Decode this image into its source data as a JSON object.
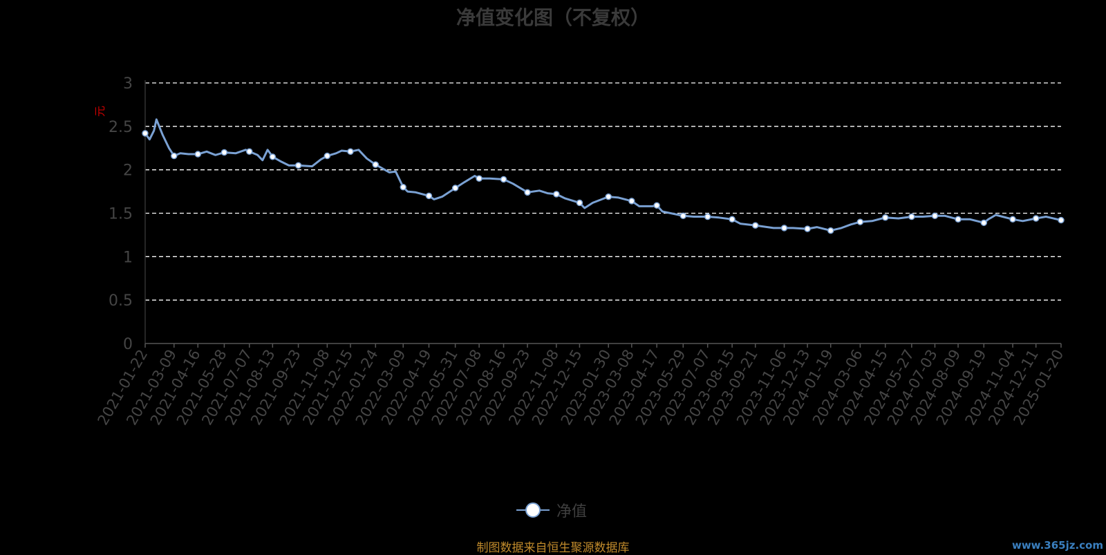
{
  "title": "净值变化图（不复权）",
  "unit_label": "元",
  "legend_label": "净值",
  "source_note": "制图数据来自恒生聚源数据库",
  "watermark": "www.365jz.com",
  "colors": {
    "line": "#7aa1d3",
    "marker_fill": "#ffffff",
    "grid": "#ffffff",
    "axis_text": "#454545",
    "unit": "#cc0000"
  },
  "chart_data": {
    "type": "line",
    "title": "净值变化图（不复权）",
    "ylabel": "元",
    "ylim": [
      0,
      3
    ],
    "yticks": [
      0,
      0.5,
      1,
      1.5,
      2,
      2.5,
      3
    ],
    "grid": true,
    "legend_position": "bottom",
    "x_ticks": [
      "2021-01-22",
      "2021-03-09",
      "2021-04-16",
      "2021-05-28",
      "2021-07-07",
      "2021-08-13",
      "2021-09-23",
      "2021-11-08",
      "2021-12-15",
      "2022-01-24",
      "2022-03-09",
      "2022-04-19",
      "2022-05-31",
      "2022-07-08",
      "2022-08-16",
      "2022-09-23",
      "2022-11-08",
      "2022-12-15",
      "2023-01-30",
      "2023-03-08",
      "2023-04-17",
      "2023-05-29",
      "2023-07-07",
      "2023-08-15",
      "2023-09-21",
      "2023-11-06",
      "2023-12-13",
      "2024-01-19",
      "2024-03-06",
      "2024-04-15",
      "2024-05-27",
      "2024-07-03",
      "2024-08-09",
      "2024-09-19",
      "2024-11-04",
      "2024-12-11",
      "2025-01-20"
    ],
    "series": [
      {
        "name": "净值",
        "points": [
          [
            "2021-01-22",
            2.42
          ],
          [
            "2021-01-29",
            2.35
          ],
          [
            "2021-02-05",
            2.45
          ],
          [
            "2021-02-09",
            2.58
          ],
          [
            "2021-02-19",
            2.4
          ],
          [
            "2021-03-01",
            2.25
          ],
          [
            "2021-03-09",
            2.16
          ],
          [
            "2021-03-19",
            2.19
          ],
          [
            "2021-04-01",
            2.18
          ],
          [
            "2021-04-16",
            2.18
          ],
          [
            "2021-04-30",
            2.21
          ],
          [
            "2021-05-14",
            2.17
          ],
          [
            "2021-05-28",
            2.2
          ],
          [
            "2021-06-15",
            2.19
          ],
          [
            "2021-07-01",
            2.23
          ],
          [
            "2021-07-07",
            2.21
          ],
          [
            "2021-07-20",
            2.17
          ],
          [
            "2021-07-28",
            2.11
          ],
          [
            "2021-08-05",
            2.23
          ],
          [
            "2021-08-13",
            2.15
          ],
          [
            "2021-08-25",
            2.1
          ],
          [
            "2021-09-08",
            2.05
          ],
          [
            "2021-09-23",
            2.05
          ],
          [
            "2021-10-15",
            2.04
          ],
          [
            "2021-10-29",
            2.12
          ],
          [
            "2021-11-08",
            2.16
          ],
          [
            "2021-11-22",
            2.19
          ],
          [
            "2021-12-01",
            2.22
          ],
          [
            "2021-12-15",
            2.21
          ],
          [
            "2021-12-28",
            2.23
          ],
          [
            "2022-01-10",
            2.13
          ],
          [
            "2022-01-24",
            2.06
          ],
          [
            "2022-02-15",
            1.97
          ],
          [
            "2022-02-25",
            1.98
          ],
          [
            "2022-03-09",
            1.8
          ],
          [
            "2022-03-16",
            1.75
          ],
          [
            "2022-03-29",
            1.74
          ],
          [
            "2022-04-19",
            1.7
          ],
          [
            "2022-04-27",
            1.66
          ],
          [
            "2022-05-10",
            1.69
          ],
          [
            "2022-05-31",
            1.79
          ],
          [
            "2022-06-15",
            1.86
          ],
          [
            "2022-07-01",
            1.93
          ],
          [
            "2022-07-08",
            1.9
          ],
          [
            "2022-07-25",
            1.9
          ],
          [
            "2022-08-16",
            1.89
          ],
          [
            "2022-08-31",
            1.84
          ],
          [
            "2022-09-23",
            1.74
          ],
          [
            "2022-10-12",
            1.76
          ],
          [
            "2022-10-25",
            1.73
          ],
          [
            "2022-11-08",
            1.72
          ],
          [
            "2022-11-22",
            1.67
          ],
          [
            "2022-12-15",
            1.62
          ],
          [
            "2022-12-23",
            1.56
          ],
          [
            "2023-01-05",
            1.62
          ],
          [
            "2023-01-30",
            1.69
          ],
          [
            "2023-02-15",
            1.68
          ],
          [
            "2023-03-08",
            1.64
          ],
          [
            "2023-03-20",
            1.58
          ],
          [
            "2023-04-10",
            1.58
          ],
          [
            "2023-04-17",
            1.59
          ],
          [
            "2023-04-26",
            1.52
          ],
          [
            "2023-05-29",
            1.47
          ],
          [
            "2023-06-15",
            1.46
          ],
          [
            "2023-07-07",
            1.46
          ],
          [
            "2023-07-25",
            1.45
          ],
          [
            "2023-08-15",
            1.43
          ],
          [
            "2023-08-28",
            1.38
          ],
          [
            "2023-09-21",
            1.36
          ],
          [
            "2023-10-20",
            1.33
          ],
          [
            "2023-11-06",
            1.33
          ],
          [
            "2023-11-20",
            1.33
          ],
          [
            "2023-12-13",
            1.32
          ],
          [
            "2023-12-28",
            1.34
          ],
          [
            "2024-01-19",
            1.3
          ],
          [
            "2024-02-05",
            1.33
          ],
          [
            "2024-02-20",
            1.37
          ],
          [
            "2024-03-06",
            1.4
          ],
          [
            "2024-03-25",
            1.41
          ],
          [
            "2024-04-15",
            1.45
          ],
          [
            "2024-05-06",
            1.44
          ],
          [
            "2024-05-27",
            1.46
          ],
          [
            "2024-06-14",
            1.46
          ],
          [
            "2024-07-03",
            1.47
          ],
          [
            "2024-07-19",
            1.47
          ],
          [
            "2024-08-09",
            1.43
          ],
          [
            "2024-08-28",
            1.43
          ],
          [
            "2024-09-19",
            1.39
          ],
          [
            "2024-09-26",
            1.43
          ],
          [
            "2024-10-08",
            1.48
          ],
          [
            "2024-11-04",
            1.43
          ],
          [
            "2024-11-20",
            1.41
          ],
          [
            "2024-12-11",
            1.44
          ],
          [
            "2024-12-27",
            1.46
          ],
          [
            "2025-01-20",
            1.42
          ]
        ],
        "marker_dates": [
          "2021-01-22",
          "2021-03-09",
          "2021-04-16",
          "2021-05-28",
          "2021-07-07",
          "2021-08-13",
          "2021-09-23",
          "2021-11-08",
          "2021-12-15",
          "2022-01-24",
          "2022-03-09",
          "2022-04-19",
          "2022-05-31",
          "2022-07-08",
          "2022-08-16",
          "2022-09-23",
          "2022-11-08",
          "2022-12-15",
          "2023-01-30",
          "2023-03-08",
          "2023-04-17",
          "2023-05-29",
          "2023-07-07",
          "2023-08-15",
          "2023-09-21",
          "2023-11-06",
          "2023-12-13",
          "2024-01-19",
          "2024-03-06",
          "2024-04-15",
          "2024-05-27",
          "2024-07-03",
          "2024-08-09",
          "2024-09-19",
          "2024-11-04",
          "2024-12-11",
          "2025-01-20"
        ]
      }
    ]
  }
}
